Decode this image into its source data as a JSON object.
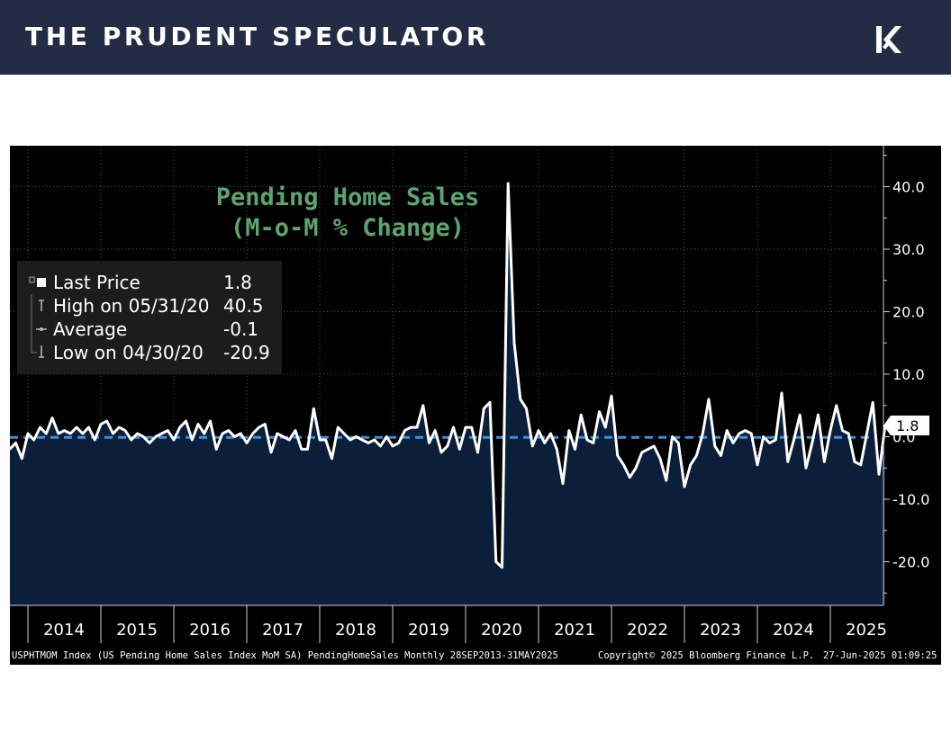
{
  "header": {
    "brand": "THE PRUDENT SPECULATOR",
    "logo_icon": "tps-chevron-logo-icon"
  },
  "chart_data": {
    "type": "area",
    "title": "Pending Home Sales",
    "subtitle": "(M-o-M % Change)",
    "xlabel": "",
    "ylabel": "",
    "ylim": [
      -27,
      46
    ],
    "yticks": [
      -20,
      -10,
      0,
      10,
      20,
      30,
      40
    ],
    "ytick_labels": [
      "-20.0",
      "-10.0",
      "0.0",
      "10.0",
      "20.0",
      "30.0",
      "40.0"
    ],
    "xticks": [
      "2014",
      "2015",
      "2016",
      "2017",
      "2018",
      "2019",
      "2020",
      "2021",
      "2022",
      "2023",
      "2024",
      "2025"
    ],
    "grid": true,
    "legend_position": "top-left",
    "colors": {
      "background": "#000000",
      "fill": "#0b1f3a",
      "line": "#ffffff",
      "average": "#3d8fe0",
      "title": "#5ba56f"
    },
    "last_value_label": "1.8",
    "series": [
      {
        "name": "USPHTMOM Index",
        "x_start": "2013-10",
        "x_end": "2025-05",
        "frequency": "monthly",
        "values": [
          -2.0,
          -1.0,
          -3.5,
          0.5,
          -0.5,
          1.5,
          0.5,
          3.0,
          0.5,
          1.0,
          0.5,
          1.5,
          0.5,
          1.5,
          -0.5,
          2.0,
          2.5,
          0.5,
          1.5,
          1.0,
          -0.5,
          0.5,
          0.0,
          -1.0,
          0.0,
          0.5,
          1.0,
          -0.5,
          1.5,
          2.5,
          -0.5,
          2.0,
          0.5,
          2.5,
          -2.0,
          0.5,
          1.0,
          0.0,
          0.5,
          -1.0,
          0.5,
          1.5,
          2.0,
          -2.5,
          0.5,
          0.0,
          -0.5,
          1.0,
          -2.0,
          -2.0,
          4.5,
          -0.5,
          -0.5,
          -3.5,
          1.5,
          0.5,
          -0.5,
          0.0,
          -0.5,
          -1.0,
          -0.5,
          -1.5,
          0.0,
          -1.5,
          -1.0,
          1.0,
          1.5,
          1.5,
          5.0,
          -1.0,
          1.0,
          -2.5,
          -1.5,
          1.5,
          -2.0,
          1.5,
          1.5,
          -2.5,
          4.5,
          5.5,
          -20.0,
          -20.9,
          40.5,
          15.0,
          6.0,
          4.5,
          -1.5,
          1.0,
          -1.0,
          0.5,
          -2.0,
          -7.5,
          1.0,
          -2.0,
          3.5,
          -0.5,
          -1.0,
          4.0,
          1.5,
          6.5,
          -3.0,
          -4.5,
          -6.5,
          -5.0,
          -2.5,
          -2.0,
          -1.5,
          -3.5,
          -7.0,
          0.0,
          -1.0,
          -8.0,
          -4.5,
          -3.0,
          0.5,
          6.0,
          -1.5,
          -3.0,
          1.0,
          -1.0,
          0.5,
          1.0,
          0.5,
          -4.5,
          0.0,
          -1.0,
          -0.5,
          7.0,
          -4.0,
          -0.5,
          3.5,
          -5.0,
          -1.0,
          3.5,
          -4.0,
          1.0,
          5.0,
          1.0,
          0.5,
          -4.0,
          -4.5,
          0.5,
          5.5,
          -6.0,
          1.8
        ]
      }
    ],
    "legend": [
      {
        "icon": "square-icon",
        "label": "Last Price",
        "value": "1.8"
      },
      {
        "icon": "high-marker-icon",
        "label": "High on 05/31/20",
        "value": "40.5"
      },
      {
        "icon": "average-marker-icon",
        "label": "Average",
        "value": "-0.1"
      },
      {
        "icon": "low-marker-icon",
        "label": "Low on 04/30/20",
        "value": "-20.9"
      }
    ],
    "average_value": -0.1
  },
  "footer": {
    "source": "USPHTMOM Index (US Pending Home Sales Index MoM SA) PendingHomeSales  Monthly 28SEP2013-31MAY2025",
    "copyright": "Copyright© 2025 Bloomberg Finance L.P.",
    "timestamp": "27-Jun-2025 01:09:25"
  }
}
